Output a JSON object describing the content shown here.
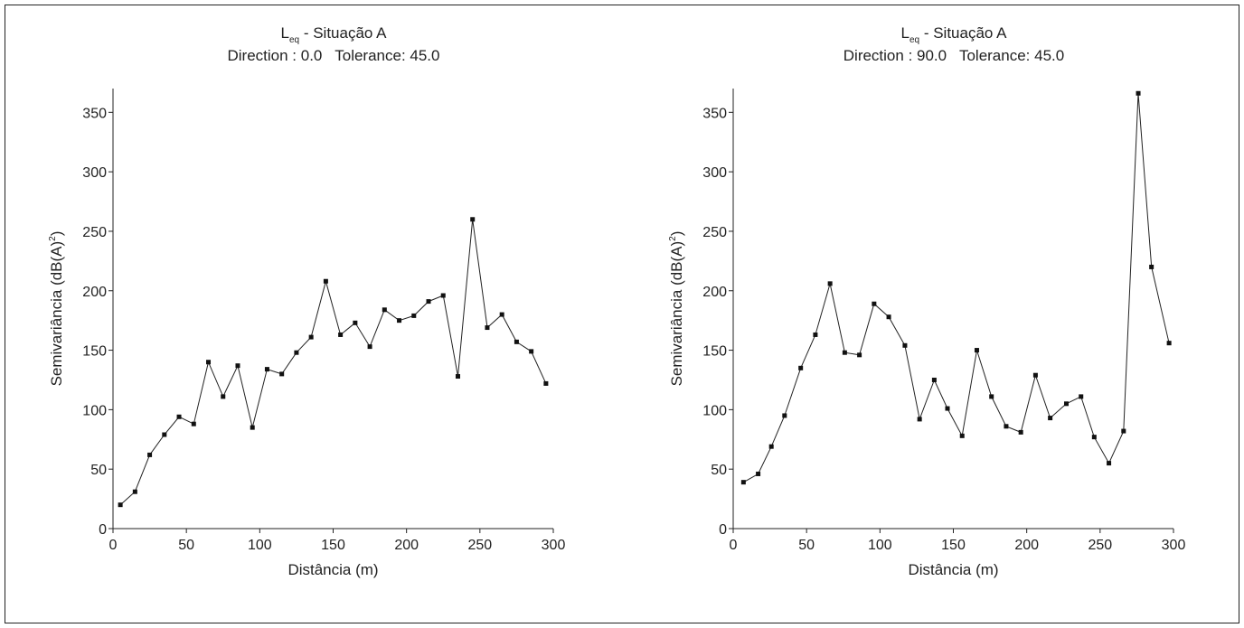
{
  "chart_data": [
    {
      "type": "line",
      "title_line1_main": "L",
      "title_line1_sub": "eq",
      "title_line1_rest": " - Situação A",
      "title_line2": "Direction : 0.0   Tolerance: 45.0",
      "xlabel": "Distância (m)",
      "ylabel_main": "Semivariância (dB(A)",
      "ylabel_sup": "2",
      "ylabel_close": ")",
      "xlim": [
        0,
        300
      ],
      "ylim": [
        0,
        370
      ],
      "xticks": [
        0,
        50,
        100,
        150,
        200,
        250,
        300
      ],
      "yticks": [
        0,
        50,
        100,
        150,
        200,
        250,
        300,
        350
      ],
      "grid": false,
      "series": [
        {
          "x": [
            5,
            15,
            25,
            35,
            45,
            55,
            65,
            75,
            85,
            95,
            105,
            115,
            125,
            135,
            145,
            155,
            165,
            175,
            185,
            195,
            205,
            215,
            225,
            235,
            245,
            255,
            265,
            275,
            285,
            295
          ],
          "y": [
            20,
            31,
            62,
            79,
            94,
            88,
            140,
            111,
            137,
            85,
            134,
            130,
            148,
            161,
            208,
            163,
            173,
            153,
            184,
            175,
            179,
            191,
            196,
            128,
            260,
            169,
            180,
            157,
            149,
            122
          ]
        }
      ]
    },
    {
      "type": "line",
      "title_line1_main": "L",
      "title_line1_sub": "eq",
      "title_line1_rest": " - Situação A",
      "title_line2": "Direction : 90.0   Tolerance: 45.0",
      "xlabel": "Distância (m)",
      "ylabel_main": "Semivariância (dB(A)",
      "ylabel_sup": "2",
      "ylabel_close": ")",
      "xlim": [
        0,
        300
      ],
      "ylim": [
        0,
        370
      ],
      "xticks": [
        0,
        50,
        100,
        150,
        200,
        250,
        300
      ],
      "yticks": [
        0,
        50,
        100,
        150,
        200,
        250,
        300,
        350
      ],
      "grid": false,
      "series": [
        {
          "x": [
            7,
            17,
            26,
            35,
            46,
            56,
            66,
            76,
            86,
            96,
            106,
            117,
            127,
            137,
            146,
            156,
            166,
            176,
            186,
            196,
            206,
            216,
            227,
            237,
            246,
            256,
            266,
            276,
            285,
            297
          ],
          "y": [
            39,
            46,
            69,
            95,
            135,
            163,
            206,
            148,
            146,
            189,
            178,
            154,
            92,
            125,
            101,
            78,
            150,
            111,
            86,
            81,
            129,
            93,
            105,
            111,
            77,
            55,
            82,
            366,
            220,
            156
          ]
        }
      ]
    }
  ]
}
